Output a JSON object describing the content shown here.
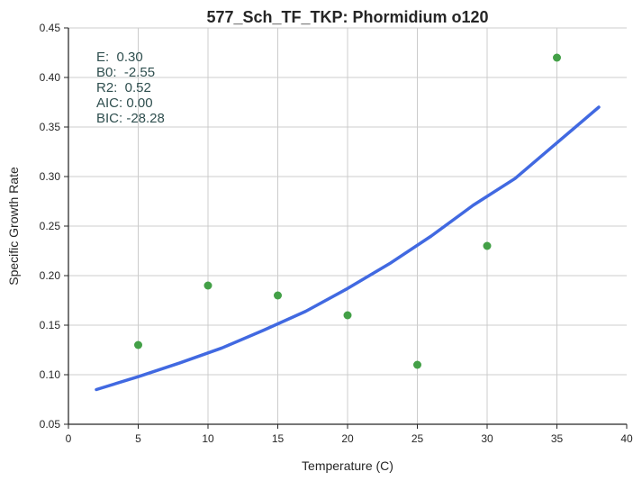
{
  "chart_data": {
    "type": "scatter",
    "title": "577_Sch_TF_TKP: Phormidium o120",
    "xlabel": "Temperature (C)",
    "ylabel": "Specific Growth Rate",
    "xlim": [
      0,
      40
    ],
    "ylim": [
      0.05,
      0.45
    ],
    "xticks": [
      "0",
      "5",
      "10",
      "15",
      "20",
      "25",
      "30",
      "35",
      "40"
    ],
    "yticks": [
      "0.05",
      "0.10",
      "0.15",
      "0.20",
      "0.25",
      "0.30",
      "0.35",
      "0.40",
      "0.45"
    ],
    "grid": true,
    "series": [
      {
        "kind": "scatter",
        "color": "#43a047",
        "x": [
          5,
          10,
          15,
          20,
          25,
          30,
          35
        ],
        "y": [
          0.13,
          0.19,
          0.18,
          0.16,
          0.11,
          0.23,
          0.42
        ]
      },
      {
        "kind": "line",
        "color": "#4169e1",
        "x": [
          2,
          5,
          8,
          11,
          14,
          17,
          20,
          23,
          26,
          29,
          32,
          35,
          38
        ],
        "y": [
          0.085,
          0.098,
          0.112,
          0.127,
          0.145,
          0.164,
          0.187,
          0.212,
          0.24,
          0.271,
          0.298,
          0.334,
          0.37
        ]
      }
    ],
    "annotations": [
      "E:  0.30",
      "B0:  -2.55",
      "R2:  0.52",
      "AIC: 0.00",
      "BIC: -28.28"
    ]
  }
}
